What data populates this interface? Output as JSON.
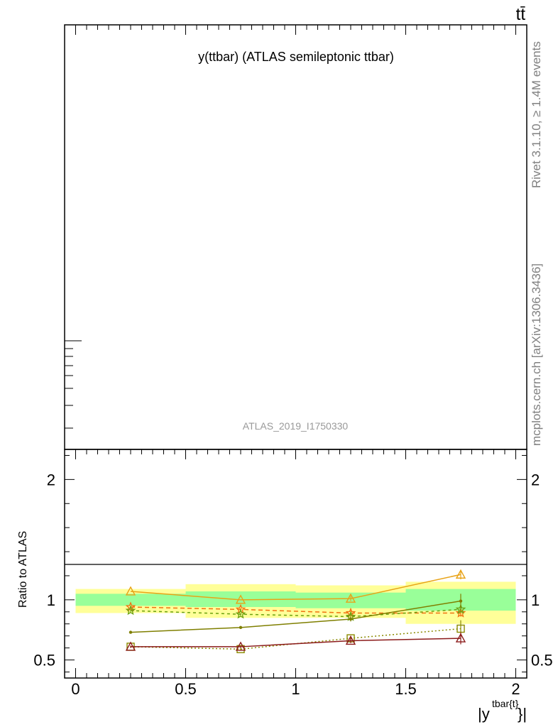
{
  "chart_data": {
    "type": "line",
    "title": "y(ttbar) (ATLAS semileptonic ttbar)",
    "process_label": "tt̄",
    "analysis_label": "ATLAS_2019_I1750330",
    "side_label_top": "Rivet 3.1.10, ≥ 1.4M events",
    "side_label_bottom": "mcplots.cern.ch [arXiv:1306.3436]",
    "xlabel": "|y",
    "xlabel_sup": "tbar{t}",
    "xlabel_end": "}|",
    "ylabel_ratio": "Ratio to ATLAS",
    "xlim": [
      -0.05,
      2.05
    ],
    "ratio_ylim": [
      0.35,
      2.25
    ],
    "x_ticks": [
      {
        "value": 0,
        "label": "0"
      },
      {
        "value": 0.5,
        "label": "0.5"
      },
      {
        "value": 1,
        "label": "1"
      },
      {
        "value": 1.5,
        "label": "1.5"
      },
      {
        "value": 2,
        "label": "2"
      }
    ],
    "ratio_y_ticks": [
      {
        "value": 0.5,
        "label": "0.5"
      },
      {
        "value": 1,
        "label": "1"
      },
      {
        "value": 2,
        "label": "2"
      }
    ],
    "bands": [
      {
        "x0": 0.0,
        "x1": 0.5,
        "inner": [
          0.95,
          1.05
        ],
        "outer": [
          0.89,
          1.09
        ]
      },
      {
        "x0": 0.5,
        "x1": 1.0,
        "inner": [
          0.94,
          1.07
        ],
        "outer": [
          0.85,
          1.13
        ]
      },
      {
        "x0": 1.0,
        "x1": 1.5,
        "inner": [
          0.93,
          1.06
        ],
        "outer": [
          0.85,
          1.12
        ]
      },
      {
        "x0": 1.5,
        "x1": 2.0,
        "inner": [
          0.91,
          1.09
        ],
        "outer": [
          0.8,
          1.15
        ]
      }
    ],
    "band_colors": {
      "inner": "#99ff99",
      "outer": "#ffff99"
    },
    "x": [
      0.25,
      0.75,
      1.25,
      1.75
    ],
    "series": [
      {
        "color": "#e8a317",
        "marker": "triangle",
        "dash": "",
        "values": [
          1.07,
          1.0,
          1.01,
          1.21
        ],
        "errors": [
          0.0,
          0.0,
          0.02,
          0.04
        ]
      },
      {
        "color": "#f07010",
        "marker": "star",
        "dash": "6,4",
        "values": [
          0.94,
          0.92,
          0.89,
          0.89
        ],
        "errors": [
          0.01,
          0.01,
          0.02,
          0.03
        ]
      },
      {
        "color": "#6aa010",
        "marker": "star",
        "dash": "4,4",
        "values": [
          0.91,
          0.88,
          0.86,
          0.92
        ],
        "errors": [
          0.01,
          0.01,
          0.02,
          0.03
        ]
      },
      {
        "color": "#7f7f00",
        "marker": "dot",
        "dash": "",
        "values": [
          0.73,
          0.77,
          0.84,
          0.99
        ],
        "errors": [
          0.01,
          0.01,
          0.02,
          0.06
        ]
      },
      {
        "color": "#8a8a00",
        "marker": "square",
        "dash": "2,3",
        "values": [
          0.61,
          0.59,
          0.68,
          0.76
        ],
        "errors": [
          0.01,
          0.01,
          0.02,
          0.07
        ]
      },
      {
        "color": "#8b1a1a",
        "marker": "triangle",
        "dash": "",
        "values": [
          0.61,
          0.61,
          0.66,
          0.68
        ],
        "errors": [
          0.01,
          0.01,
          0.02,
          0.05
        ]
      }
    ]
  }
}
